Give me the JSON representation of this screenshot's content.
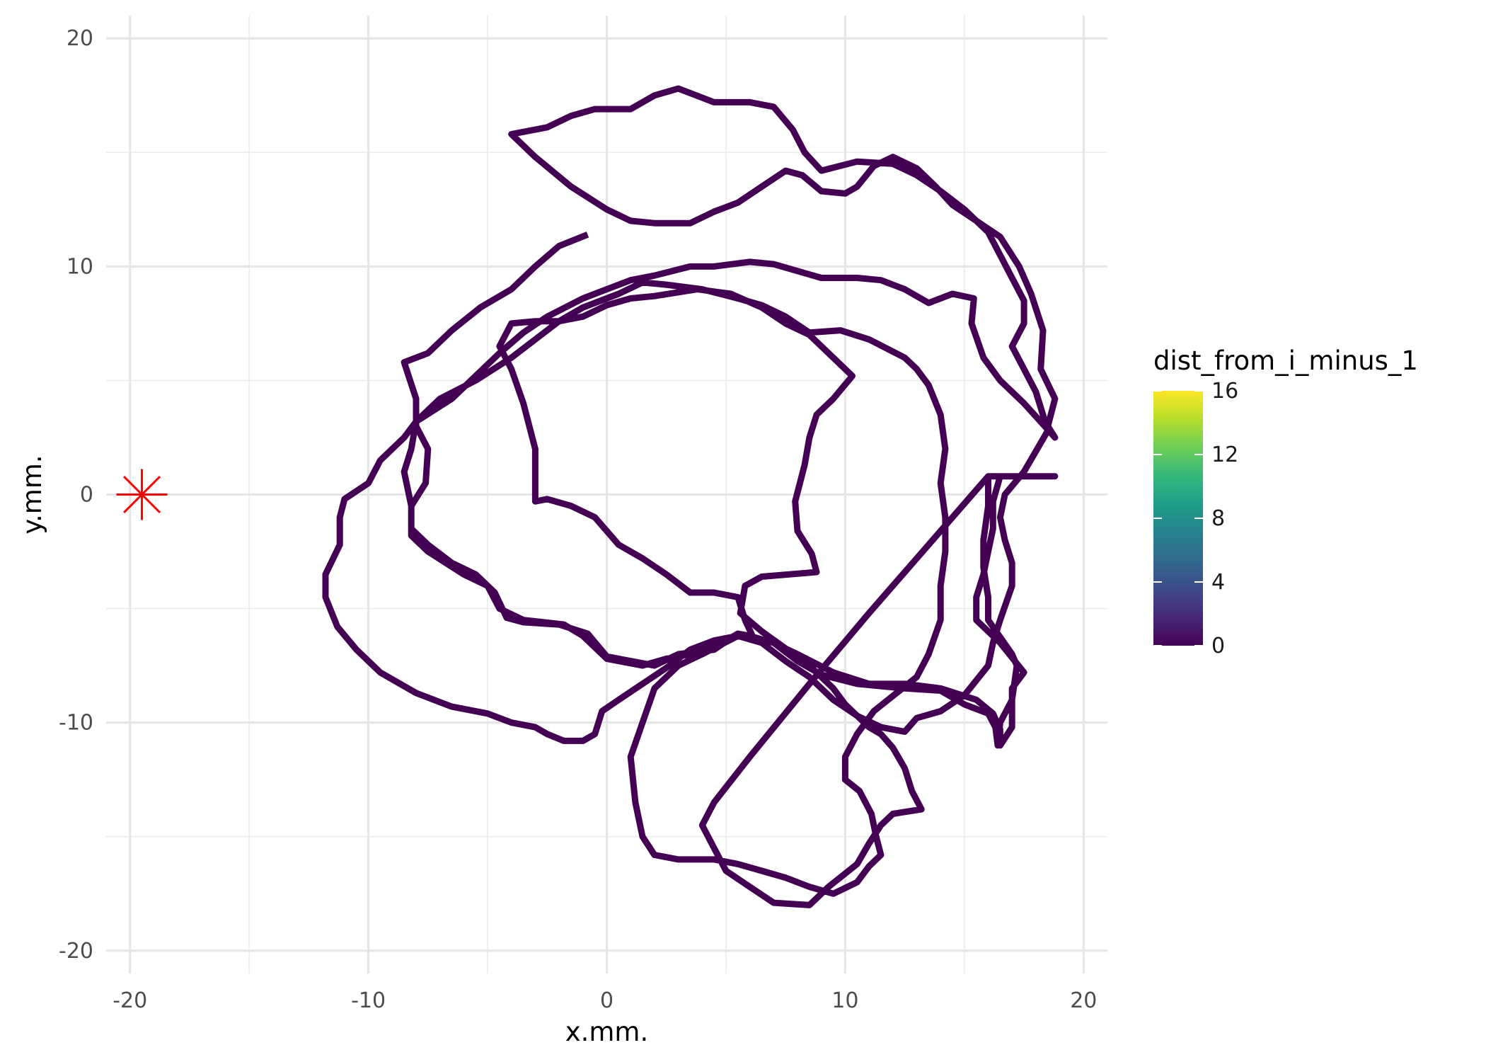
{
  "chart_data": {
    "type": "path",
    "xlabel": "x.mm.",
    "ylabel": "y.mm.",
    "xlim": [
      -21,
      21
    ],
    "ylim": [
      -21,
      21
    ],
    "x_ticks": [
      -20,
      -10,
      0,
      10,
      20
    ],
    "y_ticks": [
      -20,
      -10,
      0,
      10,
      20
    ],
    "x_tick_labels": [
      "-20",
      "-10",
      "0",
      "10",
      "20"
    ],
    "y_tick_labels": [
      "-20",
      "-10",
      "0",
      "10",
      "20"
    ],
    "grid": true,
    "legend": {
      "title": "dist_from_i_minus_1",
      "position": "right",
      "labels": [
        "0",
        "4",
        "8",
        "12",
        "16"
      ],
      "range": [
        0,
        16
      ],
      "colormap": "viridis"
    },
    "marker": {
      "x": -19.5,
      "y": 0,
      "shape": "asterisk",
      "color": "#ff0000"
    },
    "path_color": "#440154",
    "path": [
      [
        -0.8,
        11.4
      ],
      [
        -2,
        10.9
      ],
      [
        -3,
        10
      ],
      [
        -4,
        9
      ],
      [
        -5.3,
        8.2
      ],
      [
        -6.5,
        7.2
      ],
      [
        -7.5,
        6.2
      ],
      [
        -8.5,
        5.8
      ],
      [
        -8,
        4.2
      ],
      [
        -8,
        3
      ],
      [
        -7.5,
        2
      ],
      [
        -7.6,
        0.5
      ],
      [
        -8.2,
        -0.5
      ],
      [
        -8.2,
        -1.8
      ],
      [
        -7.5,
        -2.5
      ],
      [
        -6,
        -3.5
      ],
      [
        -5,
        -4
      ],
      [
        -4.5,
        -5
      ],
      [
        -3.5,
        -5.5
      ],
      [
        -1.8,
        -5.7
      ],
      [
        -1,
        -6.2
      ],
      [
        0,
        -7.2
      ],
      [
        1.5,
        -7.5
      ],
      [
        2.5,
        -7.2
      ],
      [
        3.5,
        -7
      ],
      [
        4.5,
        -6.7
      ],
      [
        5.5,
        -6.1
      ],
      [
        7,
        -6.5
      ],
      [
        8,
        -7
      ],
      [
        9.5,
        -7.8
      ],
      [
        11,
        -8.3
      ],
      [
        12.5,
        -8.3
      ],
      [
        14,
        -8.5
      ],
      [
        15.5,
        -9
      ],
      [
        16.2,
        -9.6
      ],
      [
        16.5,
        -10.3
      ],
      [
        16.5,
        -11
      ],
      [
        17,
        -10.2
      ],
      [
        17,
        -9
      ],
      [
        17.2,
        -7.5
      ],
      [
        17,
        -7
      ],
      [
        16,
        -5.5
      ],
      [
        16,
        -4.5
      ],
      [
        15.8,
        -3.2
      ],
      [
        15.8,
        -2
      ],
      [
        16,
        -0.5
      ],
      [
        16,
        0.8
      ],
      [
        18.8,
        0.8
      ],
      [
        16,
        0.8
      ],
      [
        13.5,
        -2.2
      ],
      [
        11,
        -5.2
      ],
      [
        8.5,
        -8.3
      ],
      [
        6,
        -11.5
      ],
      [
        4.5,
        -13.5
      ],
      [
        4,
        -14.5
      ],
      [
        4.5,
        -15.5
      ],
      [
        5,
        -16.5
      ],
      [
        6,
        -17.2
      ],
      [
        7,
        -17.9
      ],
      [
        8.5,
        -18
      ],
      [
        9.3,
        -17.2
      ],
      [
        10.5,
        -16.2
      ],
      [
        11,
        -15.3
      ],
      [
        11.5,
        -14.5
      ],
      [
        12,
        -14
      ],
      [
        13.2,
        -13.8
      ],
      [
        12.8,
        -13
      ],
      [
        12.5,
        -12
      ],
      [
        12,
        -11.1
      ],
      [
        11.5,
        -10.5
      ],
      [
        11,
        -10.2
      ],
      [
        10,
        -9.2
      ],
      [
        9.5,
        -8.5
      ],
      [
        8.5,
        -7.5
      ],
      [
        6.5,
        -6
      ],
      [
        5.6,
        -5.2
      ],
      [
        5.8,
        -4
      ],
      [
        6.5,
        -3.6
      ],
      [
        8.8,
        -3.4
      ],
      [
        8.6,
        -2.6
      ],
      [
        8,
        -1.6
      ],
      [
        7.9,
        -0.3
      ],
      [
        8.3,
        1.3
      ],
      [
        8.5,
        2.5
      ],
      [
        8.8,
        3.5
      ],
      [
        9.5,
        4.2
      ],
      [
        10.3,
        5.2
      ],
      [
        9.5,
        6
      ],
      [
        8.5,
        7
      ],
      [
        7.5,
        7.5
      ],
      [
        6.5,
        8.2
      ],
      [
        5.2,
        8.8
      ],
      [
        3.8,
        9
      ],
      [
        2,
        8.7
      ],
      [
        1,
        8.6
      ],
      [
        0,
        8.3
      ],
      [
        -1,
        7.8
      ],
      [
        -2,
        7.6
      ],
      [
        -3,
        7.6
      ],
      [
        -4,
        7.5
      ],
      [
        -4.5,
        6.5
      ],
      [
        -4,
        5.5
      ],
      [
        -3.5,
        4
      ],
      [
        -3,
        2
      ],
      [
        -3,
        0.5
      ],
      [
        -3,
        -0.3
      ],
      [
        -2.5,
        -0.2
      ],
      [
        -1.5,
        -0.5
      ],
      [
        -0.5,
        -1
      ],
      [
        0.5,
        -2.2
      ],
      [
        1.5,
        -2.8
      ],
      [
        2.5,
        -3.5
      ],
      [
        3.5,
        -4.3
      ],
      [
        4.5,
        -4.3
      ],
      [
        5.5,
        -4.5
      ],
      [
        5.8,
        -5.5
      ],
      [
        6.2,
        -6.4
      ],
      [
        5.5,
        -6.2
      ],
      [
        4,
        -7
      ],
      [
        3,
        -7.5
      ],
      [
        2,
        -8.5
      ],
      [
        1.5,
        -10
      ],
      [
        1,
        -11.5
      ],
      [
        1.2,
        -13.5
      ],
      [
        1.5,
        -15
      ],
      [
        2,
        -15.8
      ],
      [
        3,
        -16
      ],
      [
        4.5,
        -16
      ],
      [
        5.5,
        -16.2
      ],
      [
        6.5,
        -16.5
      ],
      [
        7.5,
        -16.8
      ],
      [
        8.5,
        -17.2
      ],
      [
        9.5,
        -17.5
      ],
      [
        10.5,
        -17
      ],
      [
        11,
        -16.3
      ],
      [
        11.5,
        -15.8
      ],
      [
        11.3,
        -15
      ],
      [
        11.1,
        -14
      ],
      [
        10.6,
        -13
      ],
      [
        10,
        -12.5
      ],
      [
        10,
        -11.5
      ],
      [
        10.5,
        -10.5
      ],
      [
        11.2,
        -9.5
      ],
      [
        11.8,
        -9
      ],
      [
        13,
        -8
      ],
      [
        13.5,
        -7
      ],
      [
        14,
        -5.5
      ],
      [
        14,
        -4
      ],
      [
        14.2,
        -2.5
      ],
      [
        14.2,
        -1
      ],
      [
        14,
        0.5
      ],
      [
        14.2,
        2
      ],
      [
        14,
        3.5
      ],
      [
        13.5,
        4.8
      ],
      [
        13,
        5.5
      ],
      [
        12.5,
        6
      ],
      [
        11,
        6.8
      ],
      [
        9.8,
        7.2
      ],
      [
        8.5,
        7.1
      ],
      [
        7.5,
        7.8
      ],
      [
        6.5,
        8.3
      ],
      [
        5.5,
        8.6
      ],
      [
        4,
        9
      ],
      [
        2.5,
        9.2
      ],
      [
        1.5,
        9.3
      ],
      [
        0.5,
        8.8
      ],
      [
        -1,
        8.2
      ],
      [
        -2,
        7.6
      ],
      [
        -3,
        6.8
      ],
      [
        -4,
        6
      ],
      [
        -5.5,
        5
      ],
      [
        -7,
        4.2
      ],
      [
        -8,
        3.2
      ],
      [
        -8.5,
        2.5
      ],
      [
        -9.5,
        1.5
      ],
      [
        -10,
        0.5
      ],
      [
        -11,
        -0.2
      ],
      [
        -11.2,
        -1
      ],
      [
        -11.2,
        -2.2
      ],
      [
        -11.8,
        -3.5
      ],
      [
        -11.8,
        -4.5
      ],
      [
        -11.3,
        -5.8
      ],
      [
        -10.5,
        -6.8
      ],
      [
        -9.5,
        -7.8
      ],
      [
        -8,
        -8.7
      ],
      [
        -6.5,
        -9.3
      ],
      [
        -5,
        -9.6
      ],
      [
        -4,
        -10
      ],
      [
        -3,
        -10.2
      ],
      [
        -2.5,
        -10.5
      ],
      [
        -1.8,
        -10.8
      ],
      [
        -1,
        -10.8
      ],
      [
        -0.5,
        -10.5
      ],
      [
        -0.2,
        -9.5
      ],
      [
        0.5,
        -9
      ],
      [
        1.5,
        -8.3
      ],
      [
        2.5,
        -7.6
      ],
      [
        3.5,
        -6.8
      ],
      [
        4.5,
        -6.4
      ],
      [
        5.5,
        -6.2
      ],
      [
        6.5,
        -6.5
      ],
      [
        7.5,
        -7.3
      ],
      [
        8.5,
        -8
      ],
      [
        9.5,
        -9
      ],
      [
        10.5,
        -9.7
      ],
      [
        11.5,
        -10.2
      ],
      [
        12.5,
        -10.4
      ],
      [
        13,
        -9.8
      ],
      [
        14,
        -9.5
      ],
      [
        15,
        -8.8
      ],
      [
        16,
        -7.5
      ],
      [
        16.2,
        -6.5
      ],
      [
        16.5,
        -5.5
      ],
      [
        17,
        -4
      ],
      [
        17,
        -3
      ],
      [
        16.7,
        -2
      ],
      [
        16.5,
        -1
      ],
      [
        16.7,
        0
      ],
      [
        17.5,
        1
      ],
      [
        18.5,
        2.8
      ],
      [
        18,
        4.5
      ],
      [
        17.5,
        5.5
      ],
      [
        17,
        6.5
      ],
      [
        17.5,
        7.5
      ],
      [
        17.5,
        8.5
      ],
      [
        17,
        9.5
      ],
      [
        16.5,
        10.5
      ],
      [
        16,
        11.5
      ],
      [
        15,
        12.5
      ],
      [
        14,
        13.3
      ],
      [
        13,
        14
      ],
      [
        12,
        14.5
      ],
      [
        10.5,
        14.6
      ],
      [
        9,
        14.2
      ],
      [
        8.3,
        15
      ],
      [
        7.8,
        16
      ],
      [
        7,
        17
      ],
      [
        6,
        17.2
      ],
      [
        4.5,
        17.2
      ],
      [
        3,
        17.8
      ],
      [
        2,
        17.5
      ],
      [
        1,
        16.9
      ],
      [
        -0.5,
        16.9
      ],
      [
        -1.5,
        16.6
      ],
      [
        -2.5,
        16.1
      ],
      [
        -4,
        15.8
      ],
      [
        -3,
        14.8
      ],
      [
        -1.5,
        13.5
      ],
      [
        0,
        12.5
      ],
      [
        1,
        12
      ],
      [
        2,
        11.9
      ],
      [
        3.5,
        11.9
      ],
      [
        4.5,
        12.4
      ],
      [
        5.5,
        12.8
      ],
      [
        6.5,
        13.5
      ],
      [
        7.5,
        14.2
      ],
      [
        8.2,
        14
      ],
      [
        9,
        13.3
      ],
      [
        10,
        13.2
      ],
      [
        10.5,
        13.5
      ],
      [
        11.2,
        14.4
      ],
      [
        12,
        14.8
      ],
      [
        13,
        14.3
      ],
      [
        13.8,
        13.5
      ],
      [
        14.5,
        12.7
      ],
      [
        15.5,
        12
      ],
      [
        16.5,
        11.3
      ],
      [
        17.3,
        10
      ],
      [
        17.8,
        8.8
      ],
      [
        18.3,
        7.2
      ],
      [
        18.2,
        5.5
      ],
      [
        18.8,
        4.2
      ],
      [
        18.5,
        3
      ],
      [
        18.8,
        2.5
      ],
      [
        17.5,
        4
      ],
      [
        16.5,
        5
      ],
      [
        15.8,
        6
      ],
      [
        15.3,
        7.5
      ],
      [
        15.4,
        8.6
      ],
      [
        14.5,
        8.8
      ],
      [
        13.5,
        8.4
      ],
      [
        12.5,
        9
      ],
      [
        11.5,
        9.4
      ],
      [
        10.5,
        9.5
      ],
      [
        9,
        9.5
      ],
      [
        8,
        9.8
      ],
      [
        7,
        10.1
      ],
      [
        6,
        10.2
      ],
      [
        4.5,
        10
      ],
      [
        3.5,
        10
      ],
      [
        2,
        9.6
      ],
      [
        1,
        9.4
      ],
      [
        0,
        9
      ],
      [
        -1,
        8.6
      ],
      [
        -2.5,
        7.8
      ],
      [
        -3.5,
        7.1
      ],
      [
        -4.5,
        6.2
      ],
      [
        -5.5,
        5.2
      ],
      [
        -6.5,
        4.2
      ],
      [
        -8,
        3.2
      ],
      [
        -8.2,
        2
      ],
      [
        -8.5,
        1
      ],
      [
        -8.2,
        -0.5
      ],
      [
        -8.2,
        -1.5
      ],
      [
        -7.5,
        -2.2
      ],
      [
        -6.5,
        -3
      ],
      [
        -5.5,
        -3.5
      ],
      [
        -4.7,
        -4.3
      ],
      [
        -4.2,
        -5.4
      ],
      [
        -3.5,
        -5.6
      ],
      [
        -2,
        -5.7
      ],
      [
        -0.8,
        -6.1
      ],
      [
        0,
        -7.1
      ],
      [
        2,
        -7.5
      ],
      [
        3,
        -7
      ],
      [
        4.5,
        -6.8
      ],
      [
        5.5,
        -6.1
      ],
      [
        6,
        -6.2
      ],
      [
        7,
        -6.5
      ],
      [
        8,
        -7.3
      ],
      [
        9,
        -7.9
      ],
      [
        10.5,
        -8.3
      ],
      [
        11.5,
        -8.4
      ],
      [
        12.5,
        -8.5
      ],
      [
        14,
        -8.6
      ],
      [
        15,
        -9.2
      ],
      [
        16,
        -9.6
      ],
      [
        16.3,
        -10.2
      ],
      [
        16.4,
        -11
      ],
      [
        16.5,
        -10
      ],
      [
        17,
        -9
      ],
      [
        17,
        -8.5
      ],
      [
        17.5,
        -7.8
      ],
      [
        16.5,
        -6.5
      ],
      [
        15.5,
        -5.5
      ],
      [
        15.5,
        -4.5
      ],
      [
        15.8,
        -3.5
      ],
      [
        16,
        -2.5
      ],
      [
        16.2,
        -1.5
      ],
      [
        16.2,
        -0.3
      ],
      [
        16.5,
        0.8
      ]
    ]
  }
}
